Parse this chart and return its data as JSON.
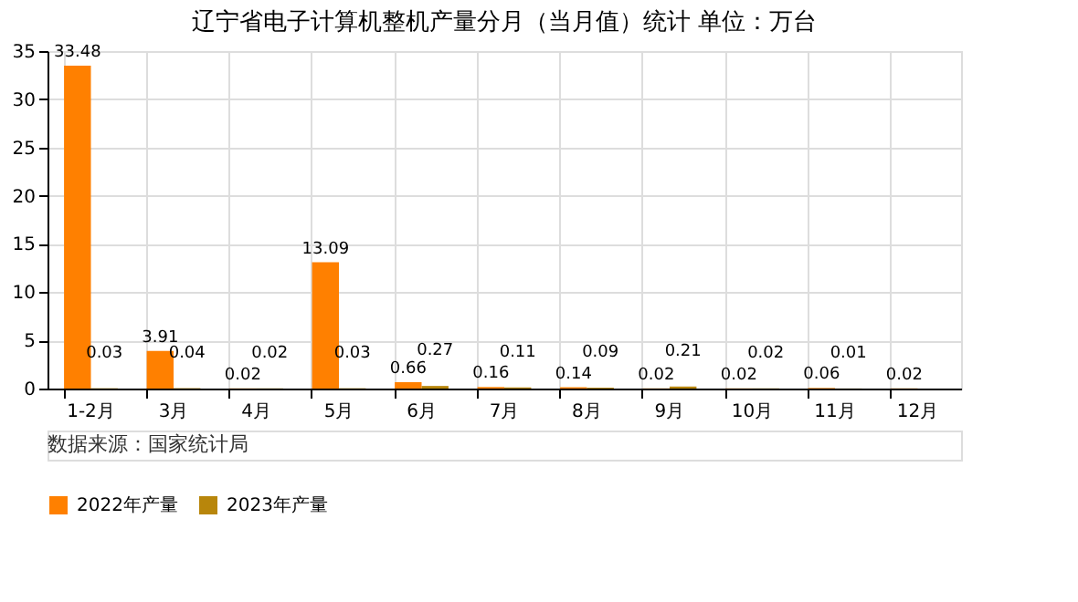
{
  "chart_data": {
    "type": "bar",
    "title": "辽宁省电子计算机整机产量分月（当月值）统计  单位：万台",
    "categories": [
      "1-2月",
      "3月",
      "4月",
      "5月",
      "6月",
      "7月",
      "8月",
      "9月",
      "10月",
      "11月",
      "12月"
    ],
    "series": [
      {
        "name": "2022年产量",
        "color": "#ff8000",
        "values": [
          33.48,
          3.91,
          0.02,
          13.09,
          0.66,
          0.16,
          0.14,
          0.02,
          0.02,
          0.06,
          0.02
        ]
      },
      {
        "name": "2023年产量",
        "color": "#b8860b",
        "values": [
          0.03,
          0.04,
          0.02,
          0.03,
          0.27,
          0.11,
          0.09,
          0.21,
          0.02,
          0.01,
          null
        ]
      }
    ],
    "ylim": [
      0,
      35
    ],
    "yticks": [
      0,
      5,
      10,
      15,
      20,
      25,
      30,
      35
    ],
    "grid": true,
    "legend": "bottom",
    "data_labels": true,
    "annotations": [
      "数据来源：国家统计局"
    ]
  }
}
